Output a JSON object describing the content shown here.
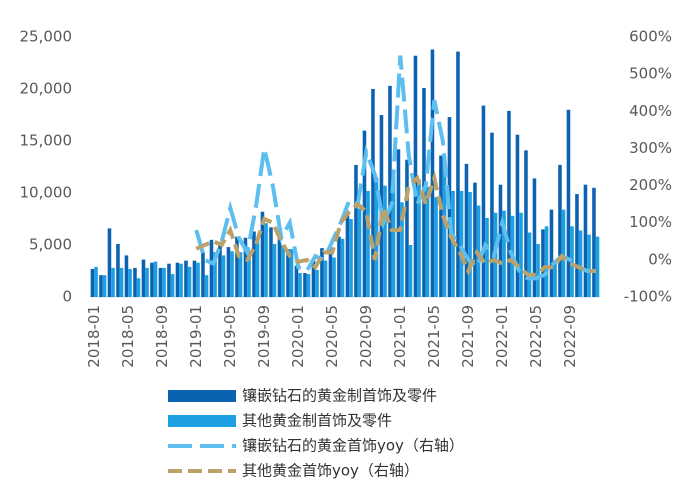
{
  "chart_data": {
    "type": "bar",
    "categories": [
      "2018-01",
      null,
      null,
      null,
      "2018-05",
      null,
      null,
      null,
      "2018-09",
      null,
      null,
      null,
      "2019-01",
      null,
      null,
      null,
      "2019-05",
      null,
      null,
      null,
      "2019-09",
      null,
      null,
      null,
      "2020-01",
      null,
      null,
      null,
      "2020-05",
      null,
      null,
      null,
      "2020-09",
      null,
      null,
      null,
      "2021-01",
      null,
      null,
      null,
      "2021-05",
      null,
      null,
      null,
      "2021-09",
      null,
      null,
      null,
      "2022-01",
      null,
      null,
      null,
      "2022-05",
      null,
      null,
      null,
      "2022-09",
      null,
      null,
      null
    ],
    "series": [
      {
        "name": "镶嵌钻石的黄金制首饰及零件",
        "color": "#0b62b0",
        "type": "bar",
        "values": [
          2700,
          2100,
          6600,
          5100,
          4000,
          2800,
          3600,
          3300,
          2800,
          3200,
          3300,
          3500,
          3500,
          4300,
          5500,
          5300,
          4800,
          5800,
          5700,
          6300,
          8200,
          6700,
          5700,
          4600,
          3000,
          2300,
          3700,
          4700,
          4700,
          5800,
          8200,
          12700,
          16000,
          20000,
          17500,
          20300,
          14200,
          13200,
          23200,
          20100,
          23800,
          13600,
          17300,
          23600,
          12800,
          11000,
          18400,
          15800,
          10800,
          17900,
          15600,
          14100,
          11400,
          6500,
          8400,
          12700,
          18000,
          9900,
          10800,
          10500
        ]
      },
      {
        "name": "其他黄金制首饰及零件",
        "color": "#1ca0e3",
        "type": "bar",
        "values": [
          2900,
          2100,
          2800,
          2800,
          2700,
          1800,
          2800,
          3400,
          2800,
          2200,
          3200,
          2900,
          3300,
          2100,
          4300,
          4000,
          4400,
          4300,
          4500,
          5400,
          7100,
          5100,
          5000,
          4600,
          2300,
          2200,
          2600,
          3500,
          3800,
          5600,
          7500,
          8500,
          10200,
          11500,
          10700,
          11500,
          9100,
          5000,
          11300,
          10600,
          9600,
          13000,
          10200,
          10200,
          10100,
          8800,
          7600,
          8100,
          8300,
          7800,
          8100,
          6200,
          5100,
          6800,
          3500,
          8400,
          6800,
          6400,
          6000,
          5800
        ]
      },
      {
        "name": "镶嵌钻石的黄金首饰yoy（右轴）",
        "color": "#5cbff0",
        "type": "line",
        "axis": "y2",
        "values": [
          null,
          null,
          null,
          null,
          null,
          null,
          null,
          null,
          null,
          null,
          null,
          null,
          80,
          0,
          -10,
          50,
          140,
          60,
          20,
          140,
          300,
          200,
          60,
          100,
          -20,
          -30,
          10,
          0,
          50,
          100,
          160,
          150,
          290,
          230,
          100,
          150,
          550,
          280,
          150,
          200,
          430,
          320,
          70,
          40,
          0,
          -20,
          40,
          10,
          100,
          20,
          -30,
          -50,
          -50,
          -40,
          -10,
          10,
          0,
          -20,
          -30,
          -30
        ]
      },
      {
        "name": "其他黄金首饰yoy（右轴）",
        "color": "#bba26a",
        "type": "line",
        "axis": "y2",
        "values": [
          null,
          null,
          null,
          null,
          null,
          null,
          null,
          null,
          null,
          null,
          null,
          null,
          30,
          40,
          50,
          40,
          80,
          10,
          0,
          40,
          110,
          100,
          50,
          10,
          -5,
          0,
          -20,
          20,
          20,
          100,
          130,
          150,
          130,
          0,
          140,
          80,
          80,
          200,
          220,
          150,
          220,
          120,
          60,
          20,
          -30,
          20,
          -10,
          0,
          -10,
          0,
          -20,
          -40,
          -40,
          -20,
          -20,
          10,
          -10,
          -20,
          -30,
          -30
        ]
      }
    ],
    "ylim": [
      0,
      25000
    ],
    "yticks": [
      0,
      {
        "value": 5000,
        "label": "5,000"
      },
      {
        "value": 10000,
        "label": "10,000"
      },
      {
        "value": 15000,
        "label": "15,000"
      },
      {
        "value": 20000,
        "label": "20,000"
      },
      {
        "value": 25000,
        "label": "25,000"
      }
    ],
    "y2lim": [
      -100,
      600
    ],
    "y2ticks": [
      {
        "value": -100,
        "label": "-100%"
      },
      {
        "value": 0,
        "label": "0%"
      },
      {
        "value": 100,
        "label": "100%"
      },
      {
        "value": 200,
        "label": "200%"
      },
      {
        "value": 300,
        "label": "300%"
      },
      {
        "value": 400,
        "label": "400%"
      },
      {
        "value": 500,
        "label": "500%"
      },
      {
        "value": 600,
        "label": "600%"
      }
    ],
    "grid": false,
    "legend": "bottom"
  }
}
